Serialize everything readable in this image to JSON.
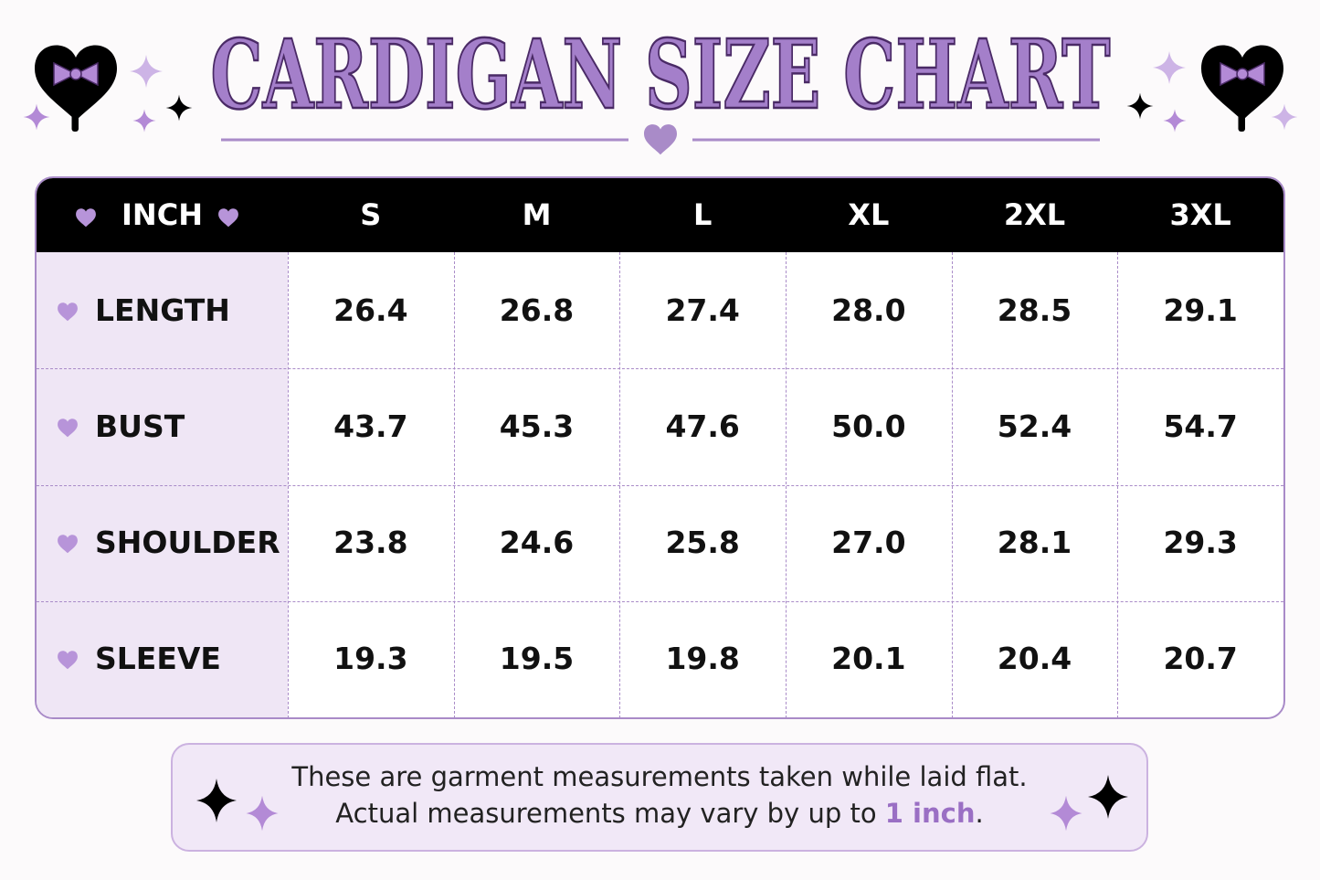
{
  "title": "CARDIGAN SIZE CHART",
  "table": {
    "corner": "INCH",
    "sizes": [
      "S",
      "M",
      "L",
      "XL",
      "2XL",
      "3XL"
    ],
    "rows": [
      {
        "label": "LENGTH",
        "values": [
          "26.4",
          "26.8",
          "27.4",
          "28.0",
          "28.5",
          "29.1"
        ]
      },
      {
        "label": "BUST",
        "values": [
          "43.7",
          "45.3",
          "47.6",
          "50.0",
          "52.4",
          "54.7"
        ]
      },
      {
        "label": "SHOULDER",
        "values": [
          "23.8",
          "24.6",
          "25.8",
          "27.0",
          "28.1",
          "29.3"
        ]
      },
      {
        "label": "SLEEVE",
        "values": [
          "19.3",
          "19.5",
          "19.8",
          "20.1",
          "20.4",
          "20.7"
        ]
      }
    ]
  },
  "note": {
    "line1": "These are garment measurements taken while laid flat.",
    "line2_before": "Actual measurements may vary by up to",
    "line2_highlight": "1 inch",
    "line2_after": "."
  }
}
